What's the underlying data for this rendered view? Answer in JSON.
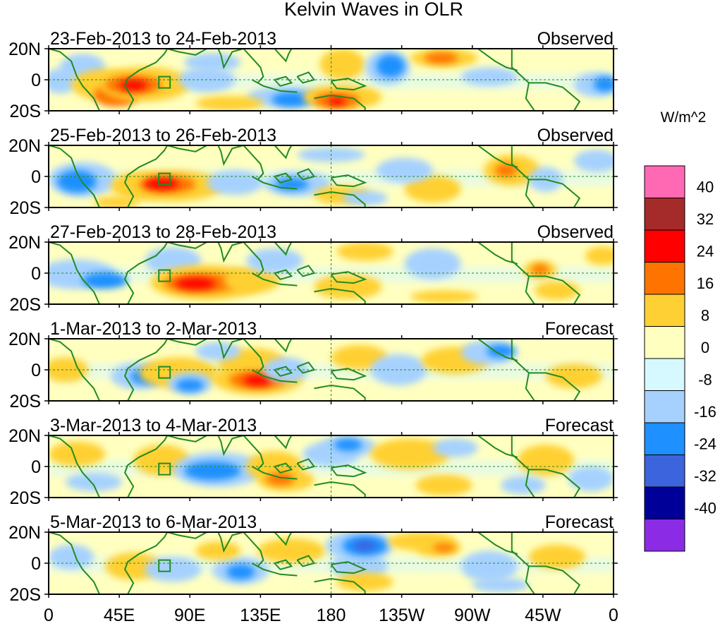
{
  "title": "Kelvin Waves in OLR",
  "units": "W/m^2",
  "lat_ticks": [
    "20N",
    "0",
    "20S"
  ],
  "lon_ticks": [
    "0",
    "45E",
    "90E",
    "135E",
    "180",
    "135W",
    "90W",
    "45W",
    "0"
  ],
  "panels": [
    {
      "date_range": "23-Feb-2013 to 24-Feb-2013",
      "type": "Observed"
    },
    {
      "date_range": "25-Feb-2013 to 26-Feb-2013",
      "type": "Observed"
    },
    {
      "date_range": "27-Feb-2013 to 28-Feb-2013",
      "type": "Observed"
    },
    {
      "date_range": "1-Mar-2013 to 2-Mar-2013",
      "type": "Forecast"
    },
    {
      "date_range": "3-Mar-2013 to 4-Mar-2013",
      "type": "Forecast"
    },
    {
      "date_range": "5-Mar-2013 to 6-Mar-2013",
      "type": "Forecast"
    }
  ],
  "colorbar": {
    "labels": [
      "40",
      "32",
      "24",
      "16",
      "8",
      "0",
      "-8",
      "-16",
      "-24",
      "-32",
      "-40"
    ],
    "colors": [
      "#ff69b4",
      "#a52a2a",
      "#ff0000",
      "#ff7300",
      "#ffd033",
      "#ffffc0",
      "#d6f8ff",
      "#a6d1ff",
      "#1e90ff",
      "#3c64dc",
      "#000099",
      "#8c2be6"
    ]
  },
  "palette": {
    "land": "#228b22",
    "pos8": "#ffd033",
    "pos16": "#ff7300",
    "pos24": "#ff0000",
    "neg8": "#a6d1ff",
    "neg16": "#1e90ff",
    "neg24": "#3c64dc",
    "base_pos": "#ffffc0",
    "base_neg": "#d6f8ff"
  }
}
